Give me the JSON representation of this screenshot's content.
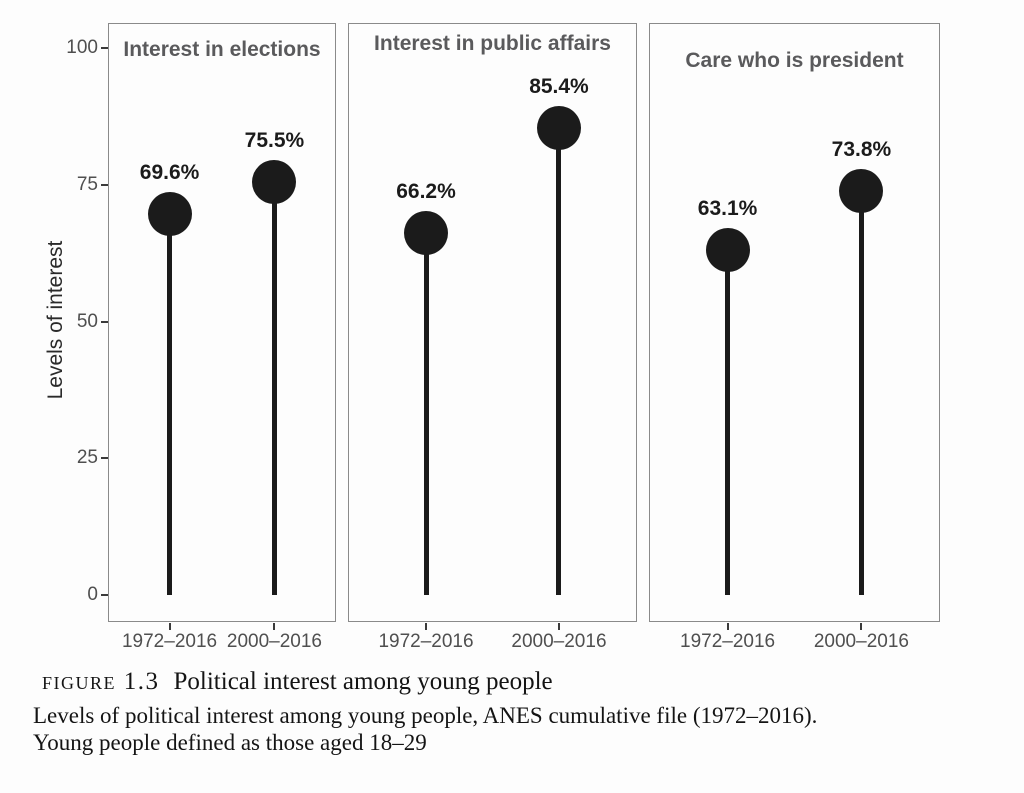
{
  "chart_data": {
    "type": "lollipop",
    "ylabel": "Levels of interest",
    "ylim": [
      0,
      100
    ],
    "yticks": [
      0,
      25,
      50,
      75,
      100
    ],
    "categories": [
      "1972–2016",
      "2000–2016"
    ],
    "panels": [
      {
        "title": "Interest in elections",
        "values": [
          69.6,
          75.5
        ],
        "value_labels": [
          "69.6%",
          "75.5%"
        ]
      },
      {
        "title": "Interest in public affairs",
        "values": [
          66.2,
          85.4
        ],
        "value_labels": [
          "66.2%",
          "85.4%"
        ]
      },
      {
        "title": "Care who is president",
        "values": [
          63.1,
          73.8
        ],
        "value_labels": [
          "63.1%",
          "73.8%"
        ]
      }
    ],
    "grid": false,
    "legend": false,
    "colors": {
      "point": "#1b1b1b",
      "panel_title": "#5a5a5c",
      "axis_text": "#4f4f4f",
      "panel_border": "#8a8a8a",
      "background": "#fdfdfd"
    }
  },
  "caption": {
    "figure_label": "figure 1.3",
    "title": "Political interest among young people",
    "line2": "Levels of political interest among young people, ANES cumulative file (1972–2016).",
    "line3": "Young people defined as those aged 18–29"
  }
}
